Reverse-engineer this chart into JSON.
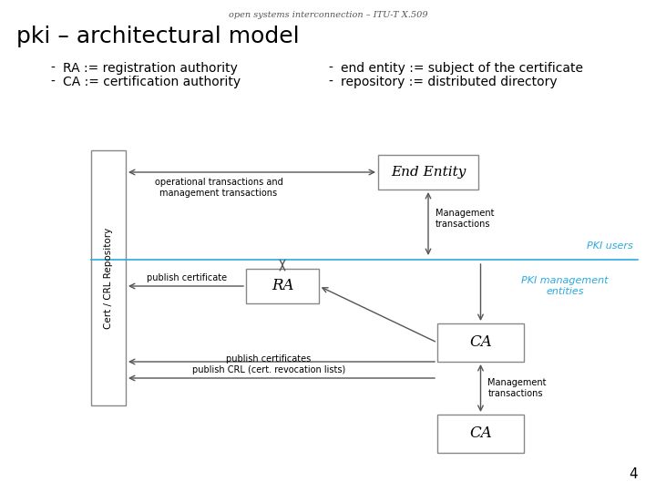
{
  "title_top": "open systems interconnection – ITU-T X.509",
  "title_main": "pki – architectural model",
  "page_num": "4",
  "bullet1a": "RA := registration authority",
  "bullet1b": "CA := certification authority",
  "bullet2a": "end entity := subject of the certificate",
  "bullet2b": "repository := distributed directory",
  "label_ee": "End Entity",
  "label_ra": "RA",
  "label_ca1": "CA",
  "label_ca2": "CA",
  "label_repo": "Cert / CRL Repository",
  "label_pki_users": "PKI users",
  "label_pki_mgmt": "PKI management\nentities",
  "arrow_label_op": "operational transactions and\nmanagement transactions",
  "arrow_label_mgmt_ee": "Management\ntransactions",
  "arrow_label_pub_cert": "publish certificate",
  "arrow_label_pub_certs": "publish certificates\npublish CRL (cert. revocation lists)",
  "arrow_label_mgmt_ca": "Management\ntransactions",
  "bg_color": "#ffffff",
  "text_color": "#000000",
  "blue_color": "#29abe2",
  "box_edge_color": "#888888",
  "box_fill_color": "#ffffff",
  "arrow_color": "#555555",
  "line_color": "#29abe2",
  "repo_fill": "#ffffff",
  "repo_edge": "#888888"
}
